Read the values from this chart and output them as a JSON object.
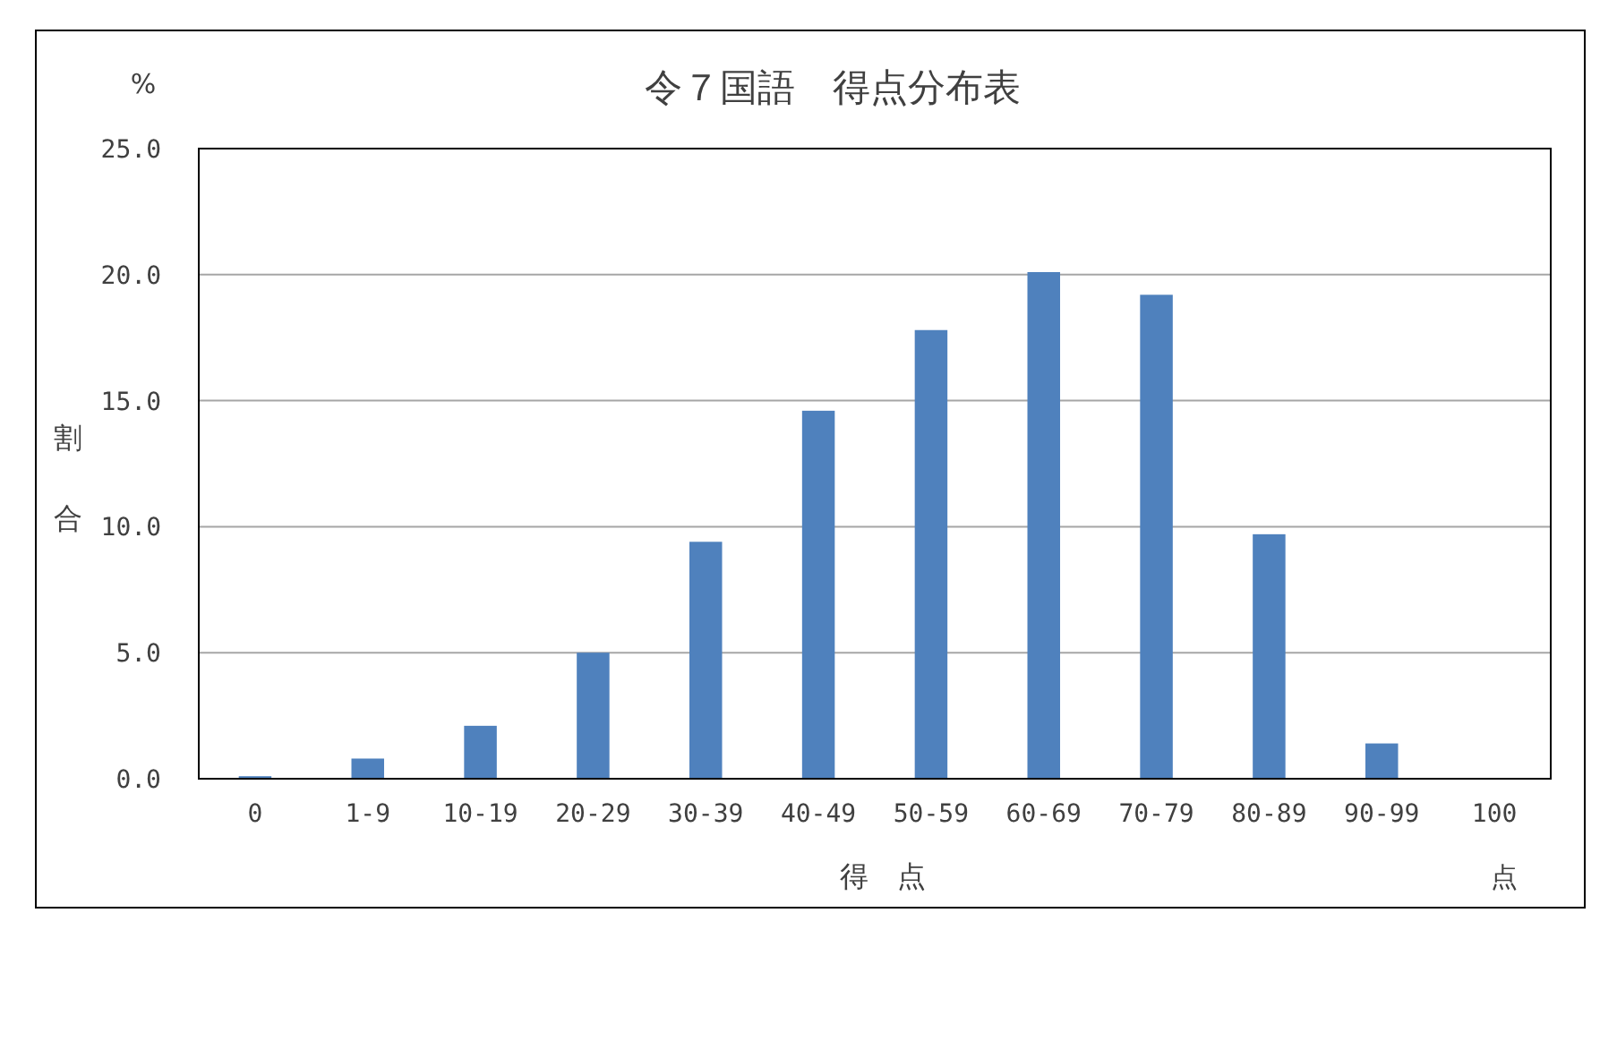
{
  "chart_data": {
    "type": "bar",
    "title": "令７国語　得点分布表",
    "xlabel": "得　点",
    "ylabel": "割合",
    "annotations": [
      "%",
      "点"
    ],
    "categories": [
      "0",
      "1-9",
      "10-19",
      "20-29",
      "30-39",
      "40-49",
      "50-59",
      "60-69",
      "70-79",
      "80-89",
      "90-99",
      "100"
    ],
    "values": [
      0.1,
      0.8,
      2.1,
      5.0,
      9.4,
      14.6,
      17.8,
      20.1,
      19.2,
      9.7,
      1.4,
      0
    ],
    "color": "#4f81bd",
    "ylim": [
      0,
      25
    ],
    "yticks": [
      {
        "value": 0,
        "label": "0.0"
      },
      {
        "value": 5,
        "label": "5.0"
      },
      {
        "value": 10,
        "label": "10.0"
      },
      {
        "value": 15,
        "label": "15.0"
      },
      {
        "value": 20,
        "label": "20.0"
      },
      {
        "value": 25,
        "label": "25.0"
      }
    ],
    "grid": "y"
  }
}
